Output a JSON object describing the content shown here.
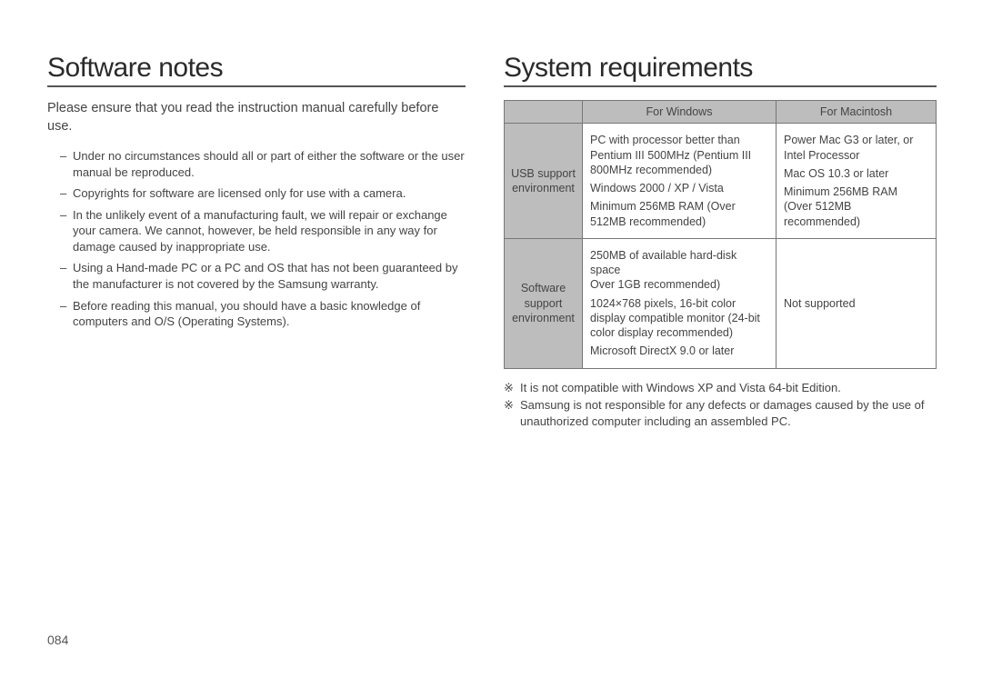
{
  "page_number": "084",
  "left": {
    "heading": "Software notes",
    "intro": "Please ensure that you read the instruction manual carefully before use.",
    "bullets": [
      "Under no circumstances should all or part of either the software or the user manual be reproduced.",
      "Copyrights for software are licensed only for use with a camera.",
      "In the unlikely event of a manufacturing fault, we will repair or exchange your camera. We cannot, however, be held responsible in any way for damage caused by inappropriate use.",
      "Using a Hand-made PC or a PC and OS that has not been guaranteed by the manufacturer is not covered by the Samsung warranty.",
      "Before reading this manual, you should have a basic knowledge of computers and O/S (Operating Systems)."
    ]
  },
  "right": {
    "heading": "System requirements",
    "table": {
      "col_win": "For Windows",
      "col_mac": "For Macintosh",
      "rows": [
        {
          "label": "USB support\nenvironment",
          "win": [
            "PC with processor better than Pentium III 500MHz (Pentium III 800MHz recommended)",
            "Windows 2000 / XP / Vista",
            "Minimum 256MB RAM (Over 512MB recommended)"
          ],
          "mac": [
            "Power Mac G3 or later, or Intel Processor",
            "Mac OS 10.3 or later",
            "Minimum 256MB RAM (Over 512MB recommended)"
          ]
        },
        {
          "label": "Software\nsupport\nenvironment",
          "win": [
            "250MB of available hard-disk space\nOver 1GB recommended)",
            "1024×768 pixels, 16-bit color display compatible monitor (24-bit color display recommended)",
            "Microsoft DirectX 9.0 or later"
          ],
          "mac": [
            "Not supported"
          ]
        }
      ]
    },
    "footnotes": [
      "It is not compatible with Windows XP and Vista 64-bit Edition.",
      "Samsung is not responsible for any defects or damages caused by the use of unauthorized computer including an assembled PC."
    ],
    "footnote_mark": "※"
  }
}
